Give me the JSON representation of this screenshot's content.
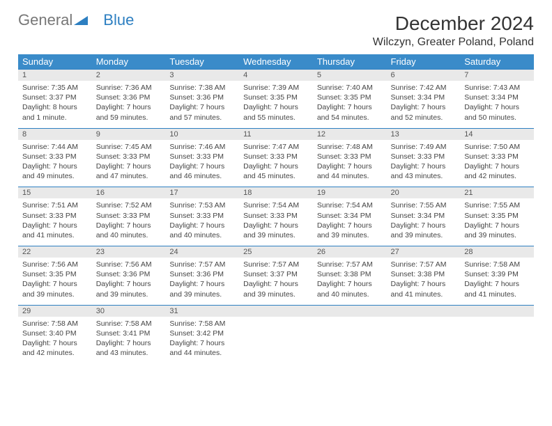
{
  "brand": {
    "part1": "General",
    "part2": "Blue"
  },
  "title": "December 2024",
  "location": "Wilczyn, Greater Poland, Poland",
  "colors": {
    "header_bg": "#3a8bc9",
    "rule": "#2d7fc1",
    "daynum_bg": "#e9e9e9",
    "text": "#333333"
  },
  "weekdays": [
    "Sunday",
    "Monday",
    "Tuesday",
    "Wednesday",
    "Thursday",
    "Friday",
    "Saturday"
  ],
  "weeks": [
    [
      {
        "n": "1",
        "sunrise": "7:35 AM",
        "sunset": "3:37 PM",
        "daylight": "8 hours and 1 minute."
      },
      {
        "n": "2",
        "sunrise": "7:36 AM",
        "sunset": "3:36 PM",
        "daylight": "7 hours and 59 minutes."
      },
      {
        "n": "3",
        "sunrise": "7:38 AM",
        "sunset": "3:36 PM",
        "daylight": "7 hours and 57 minutes."
      },
      {
        "n": "4",
        "sunrise": "7:39 AM",
        "sunset": "3:35 PM",
        "daylight": "7 hours and 55 minutes."
      },
      {
        "n": "5",
        "sunrise": "7:40 AM",
        "sunset": "3:35 PM",
        "daylight": "7 hours and 54 minutes."
      },
      {
        "n": "6",
        "sunrise": "7:42 AM",
        "sunset": "3:34 PM",
        "daylight": "7 hours and 52 minutes."
      },
      {
        "n": "7",
        "sunrise": "7:43 AM",
        "sunset": "3:34 PM",
        "daylight": "7 hours and 50 minutes."
      }
    ],
    [
      {
        "n": "8",
        "sunrise": "7:44 AM",
        "sunset": "3:33 PM",
        "daylight": "7 hours and 49 minutes."
      },
      {
        "n": "9",
        "sunrise": "7:45 AM",
        "sunset": "3:33 PM",
        "daylight": "7 hours and 47 minutes."
      },
      {
        "n": "10",
        "sunrise": "7:46 AM",
        "sunset": "3:33 PM",
        "daylight": "7 hours and 46 minutes."
      },
      {
        "n": "11",
        "sunrise": "7:47 AM",
        "sunset": "3:33 PM",
        "daylight": "7 hours and 45 minutes."
      },
      {
        "n": "12",
        "sunrise": "7:48 AM",
        "sunset": "3:33 PM",
        "daylight": "7 hours and 44 minutes."
      },
      {
        "n": "13",
        "sunrise": "7:49 AM",
        "sunset": "3:33 PM",
        "daylight": "7 hours and 43 minutes."
      },
      {
        "n": "14",
        "sunrise": "7:50 AM",
        "sunset": "3:33 PM",
        "daylight": "7 hours and 42 minutes."
      }
    ],
    [
      {
        "n": "15",
        "sunrise": "7:51 AM",
        "sunset": "3:33 PM",
        "daylight": "7 hours and 41 minutes."
      },
      {
        "n": "16",
        "sunrise": "7:52 AM",
        "sunset": "3:33 PM",
        "daylight": "7 hours and 40 minutes."
      },
      {
        "n": "17",
        "sunrise": "7:53 AM",
        "sunset": "3:33 PM",
        "daylight": "7 hours and 40 minutes."
      },
      {
        "n": "18",
        "sunrise": "7:54 AM",
        "sunset": "3:33 PM",
        "daylight": "7 hours and 39 minutes."
      },
      {
        "n": "19",
        "sunrise": "7:54 AM",
        "sunset": "3:34 PM",
        "daylight": "7 hours and 39 minutes."
      },
      {
        "n": "20",
        "sunrise": "7:55 AM",
        "sunset": "3:34 PM",
        "daylight": "7 hours and 39 minutes."
      },
      {
        "n": "21",
        "sunrise": "7:55 AM",
        "sunset": "3:35 PM",
        "daylight": "7 hours and 39 minutes."
      }
    ],
    [
      {
        "n": "22",
        "sunrise": "7:56 AM",
        "sunset": "3:35 PM",
        "daylight": "7 hours and 39 minutes."
      },
      {
        "n": "23",
        "sunrise": "7:56 AM",
        "sunset": "3:36 PM",
        "daylight": "7 hours and 39 minutes."
      },
      {
        "n": "24",
        "sunrise": "7:57 AM",
        "sunset": "3:36 PM",
        "daylight": "7 hours and 39 minutes."
      },
      {
        "n": "25",
        "sunrise": "7:57 AM",
        "sunset": "3:37 PM",
        "daylight": "7 hours and 39 minutes."
      },
      {
        "n": "26",
        "sunrise": "7:57 AM",
        "sunset": "3:38 PM",
        "daylight": "7 hours and 40 minutes."
      },
      {
        "n": "27",
        "sunrise": "7:57 AM",
        "sunset": "3:38 PM",
        "daylight": "7 hours and 41 minutes."
      },
      {
        "n": "28",
        "sunrise": "7:58 AM",
        "sunset": "3:39 PM",
        "daylight": "7 hours and 41 minutes."
      }
    ],
    [
      {
        "n": "29",
        "sunrise": "7:58 AM",
        "sunset": "3:40 PM",
        "daylight": "7 hours and 42 minutes."
      },
      {
        "n": "30",
        "sunrise": "7:58 AM",
        "sunset": "3:41 PM",
        "daylight": "7 hours and 43 minutes."
      },
      {
        "n": "31",
        "sunrise": "7:58 AM",
        "sunset": "3:42 PM",
        "daylight": "7 hours and 44 minutes."
      },
      null,
      null,
      null,
      null
    ]
  ],
  "labels": {
    "sunrise": "Sunrise:",
    "sunset": "Sunset:",
    "daylight": "Daylight:"
  }
}
